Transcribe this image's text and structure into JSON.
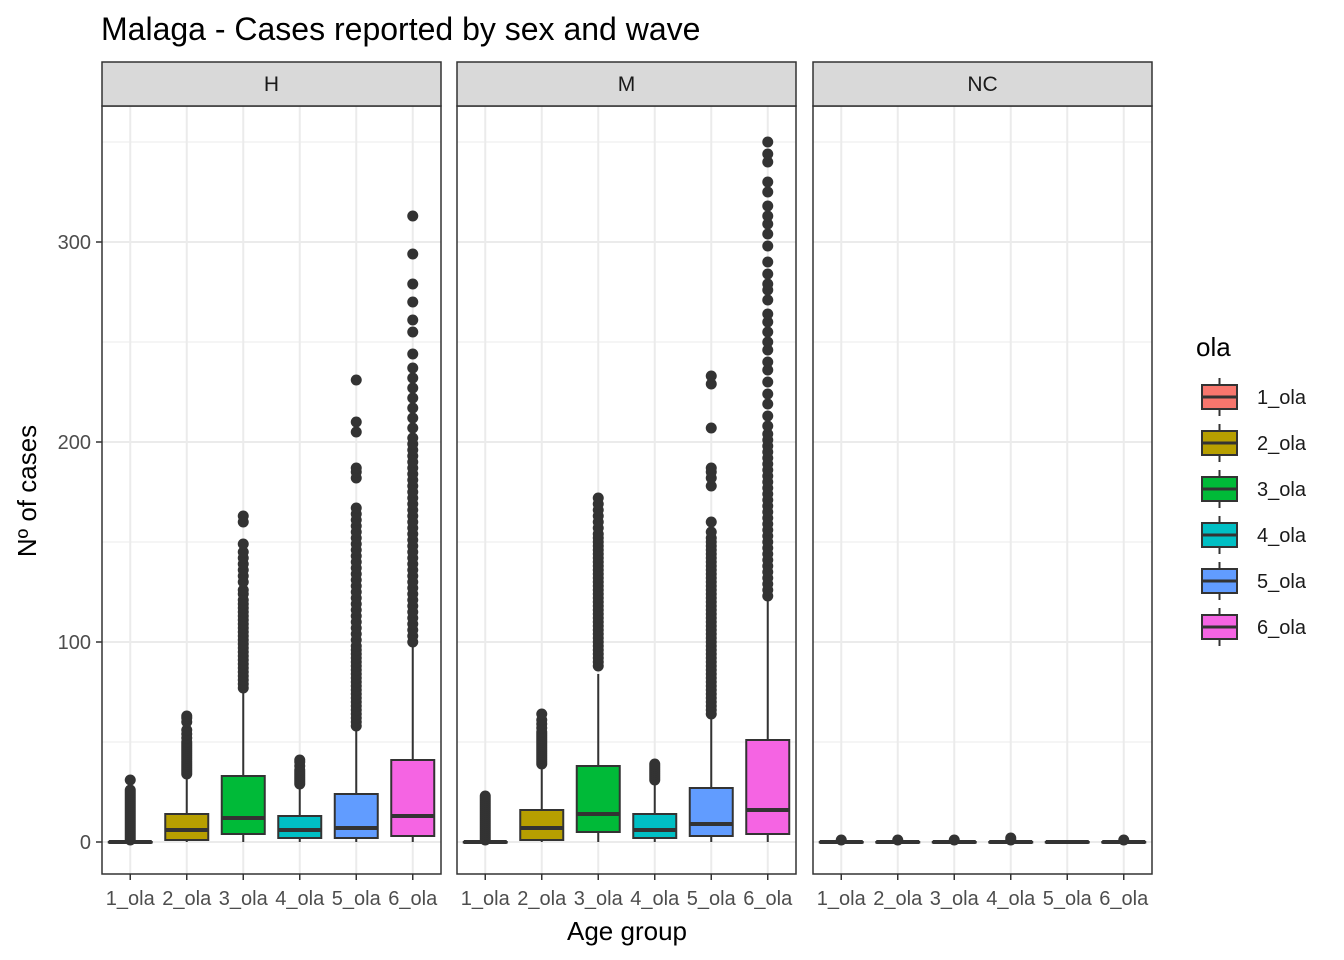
{
  "chart_data": {
    "type": "boxplot",
    "title": "Malaga - Cases reported by sex and wave",
    "xlabel": "Age group",
    "ylabel": "Nº of cases",
    "ylim": [
      -16,
      368
    ],
    "yticks": [
      0,
      100,
      200,
      300
    ],
    "grid": true,
    "categories": [
      "1_ola",
      "2_ola",
      "3_ola",
      "4_ola",
      "5_ola",
      "6_ola"
    ],
    "legend": {
      "title": "ola",
      "position": "right",
      "entries": [
        "1_ola",
        "2_ola",
        "3_ola",
        "4_ola",
        "5_ola",
        "6_ola"
      ],
      "colors": [
        "#F8766D",
        "#B79F00",
        "#00BA38",
        "#00BFC4",
        "#619CFF",
        "#F564E3"
      ]
    },
    "panels": [
      {
        "label": "H",
        "boxes": [
          {
            "category": "1_ola",
            "q1": 0,
            "median": 0,
            "q3": 0,
            "whisker_low": 0,
            "whisker_high": 0,
            "outliers": [
              1,
              2,
              3,
              4,
              5,
              6,
              7,
              8,
              9,
              10,
              11,
              12,
              13,
              14,
              15,
              16,
              17,
              18,
              19,
              20,
              21,
              22,
              23,
              24,
              25,
              26,
              31
            ]
          },
          {
            "category": "2_ola",
            "q1": 1,
            "median": 6,
            "q3": 14,
            "whisker_low": 0,
            "whisker_high": 33,
            "outliers": [
              34,
              35,
              36,
              37,
              38,
              39,
              40,
              41,
              42,
              43,
              44,
              45,
              46,
              47,
              48,
              49,
              50,
              52,
              54,
              56,
              60,
              62,
              63
            ]
          },
          {
            "category": "3_ola",
            "q1": 4,
            "median": 12,
            "q3": 33,
            "whisker_low": 0,
            "whisker_high": 76,
            "outliers": [
              77,
              79,
              81,
              83,
              85,
              87,
              89,
              91,
              93,
              95,
              97,
              99,
              101,
              103,
              105,
              107,
              109,
              111,
              113,
              115,
              117,
              119,
              121,
              124,
              126,
              130,
              133,
              136,
              139,
              142,
              145,
              149,
              160,
              163
            ]
          },
          {
            "category": "4_ola",
            "q1": 2,
            "median": 6,
            "q3": 13,
            "whisker_low": 0,
            "whisker_high": 28,
            "outliers": [
              29,
              30,
              31,
              32,
              33,
              34,
              35,
              36,
              38,
              40,
              41
            ]
          },
          {
            "category": "5_ola",
            "q1": 2,
            "median": 7,
            "q3": 24,
            "whisker_low": 0,
            "whisker_high": 57,
            "outliers": [
              58,
              60,
              62,
              64,
              66,
              68,
              70,
              72,
              74,
              76,
              78,
              80,
              82,
              84,
              86,
              88,
              90,
              92,
              94,
              96,
              98,
              101,
              104,
              107,
              110,
              113,
              116,
              119,
              122,
              125,
              128,
              131,
              134,
              137,
              140,
              143,
              146,
              149,
              152,
              155,
              158,
              161,
              164,
              167,
              182,
              185,
              187,
              205,
              210,
              231
            ]
          },
          {
            "category": "6_ola",
            "q1": 3,
            "median": 13,
            "q3": 41,
            "whisker_low": 0,
            "whisker_high": 98,
            "outliers": [
              100,
              103,
              106,
              109,
              112,
              115,
              118,
              121,
              124,
              127,
              130,
              133,
              136,
              139,
              142,
              145,
              148,
              151,
              154,
              157,
              160,
              163,
              166,
              169,
              172,
              175,
              178,
              181,
              184,
              187,
              190,
              193,
              196,
              199,
              202,
              207,
              212,
              217,
              222,
              227,
              232,
              237,
              244,
              255,
              261,
              270,
              279,
              294,
              313
            ]
          }
        ]
      },
      {
        "label": "M",
        "boxes": [
          {
            "category": "1_ola",
            "q1": 0,
            "median": 0,
            "q3": 0,
            "whisker_low": 0,
            "whisker_high": 0,
            "outliers": [
              1,
              2,
              3,
              4,
              5,
              6,
              7,
              8,
              9,
              10,
              11,
              12,
              13,
              14,
              15,
              16,
              17,
              18,
              19,
              20,
              21,
              22,
              23
            ]
          },
          {
            "category": "2_ola",
            "q1": 1,
            "median": 7,
            "q3": 16,
            "whisker_low": 0,
            "whisker_high": 38,
            "outliers": [
              39,
              40,
              41,
              42,
              43,
              44,
              45,
              46,
              47,
              48,
              49,
              50,
              51,
              52,
              53,
              54,
              55,
              57,
              59,
              61,
              64
            ]
          },
          {
            "category": "3_ola",
            "q1": 5,
            "median": 14,
            "q3": 38,
            "whisker_low": 0,
            "whisker_high": 84,
            "outliers": [
              88,
              90,
              92,
              94,
              96,
              98,
              100,
              102,
              104,
              106,
              108,
              110,
              112,
              114,
              116,
              118,
              120,
              122,
              124,
              126,
              128,
              130,
              132,
              134,
              136,
              138,
              140,
              142,
              144,
              146,
              148,
              150,
              152,
              154,
              157,
              160,
              163,
              166,
              169,
              172
            ]
          },
          {
            "category": "4_ola",
            "q1": 2,
            "median": 6,
            "q3": 14,
            "whisker_low": 0,
            "whisker_high": 30,
            "outliers": [
              31,
              32,
              33,
              34,
              35,
              36,
              37,
              38,
              39
            ]
          },
          {
            "category": "5_ola",
            "q1": 3,
            "median": 9,
            "q3": 27,
            "whisker_low": 0,
            "whisker_high": 63,
            "outliers": [
              64,
              66,
              68,
              70,
              72,
              74,
              76,
              78,
              80,
              82,
              84,
              86,
              88,
              90,
              92,
              94,
              96,
              98,
              100,
              102,
              104,
              106,
              108,
              110,
              112,
              114,
              116,
              118,
              120,
              122,
              124,
              126,
              128,
              130,
              132,
              134,
              136,
              138,
              140,
              142,
              144,
              146,
              148,
              150,
              152,
              155,
              160,
              178,
              182,
              185,
              187,
              207,
              229,
              233
            ]
          },
          {
            "category": "6_ola",
            "q1": 4,
            "median": 16,
            "q3": 51,
            "whisker_low": 0,
            "whisker_high": 121,
            "outliers": [
              123,
              126,
              129,
              132,
              135,
              138,
              141,
              144,
              147,
              150,
              153,
              156,
              159,
              162,
              165,
              168,
              171,
              174,
              177,
              180,
              183,
              186,
              189,
              192,
              195,
              198,
              201,
              204,
              208,
              213,
              219,
              224,
              230,
              236,
              240,
              246,
              250,
              255,
              260,
              264,
              271,
              276,
              279,
              284,
              290,
              298,
              304,
              309,
              313,
              318,
              325,
              330,
              340,
              344,
              350
            ]
          }
        ]
      },
      {
        "label": "NC",
        "boxes": [
          {
            "category": "1_ola",
            "q1": 0,
            "median": 0,
            "q3": 0,
            "whisker_low": 0,
            "whisker_high": 0,
            "outliers": [
              1
            ]
          },
          {
            "category": "2_ola",
            "q1": 0,
            "median": 0,
            "q3": 0,
            "whisker_low": 0,
            "whisker_high": 0,
            "outliers": [
              1
            ]
          },
          {
            "category": "3_ola",
            "q1": 0,
            "median": 0,
            "q3": 0,
            "whisker_low": 0,
            "whisker_high": 0,
            "outliers": [
              1
            ]
          },
          {
            "category": "4_ola",
            "q1": 0,
            "median": 0,
            "q3": 0,
            "whisker_low": 0,
            "whisker_high": 0,
            "outliers": [
              1,
              2
            ]
          },
          {
            "category": "5_ola",
            "q1": 0,
            "median": 0,
            "q3": 0,
            "whisker_low": 0,
            "whisker_high": 0,
            "outliers": []
          },
          {
            "category": "6_ola",
            "q1": 0,
            "median": 0,
            "q3": 0,
            "whisker_low": 0,
            "whisker_high": 0,
            "outliers": [
              1
            ]
          }
        ]
      }
    ]
  }
}
